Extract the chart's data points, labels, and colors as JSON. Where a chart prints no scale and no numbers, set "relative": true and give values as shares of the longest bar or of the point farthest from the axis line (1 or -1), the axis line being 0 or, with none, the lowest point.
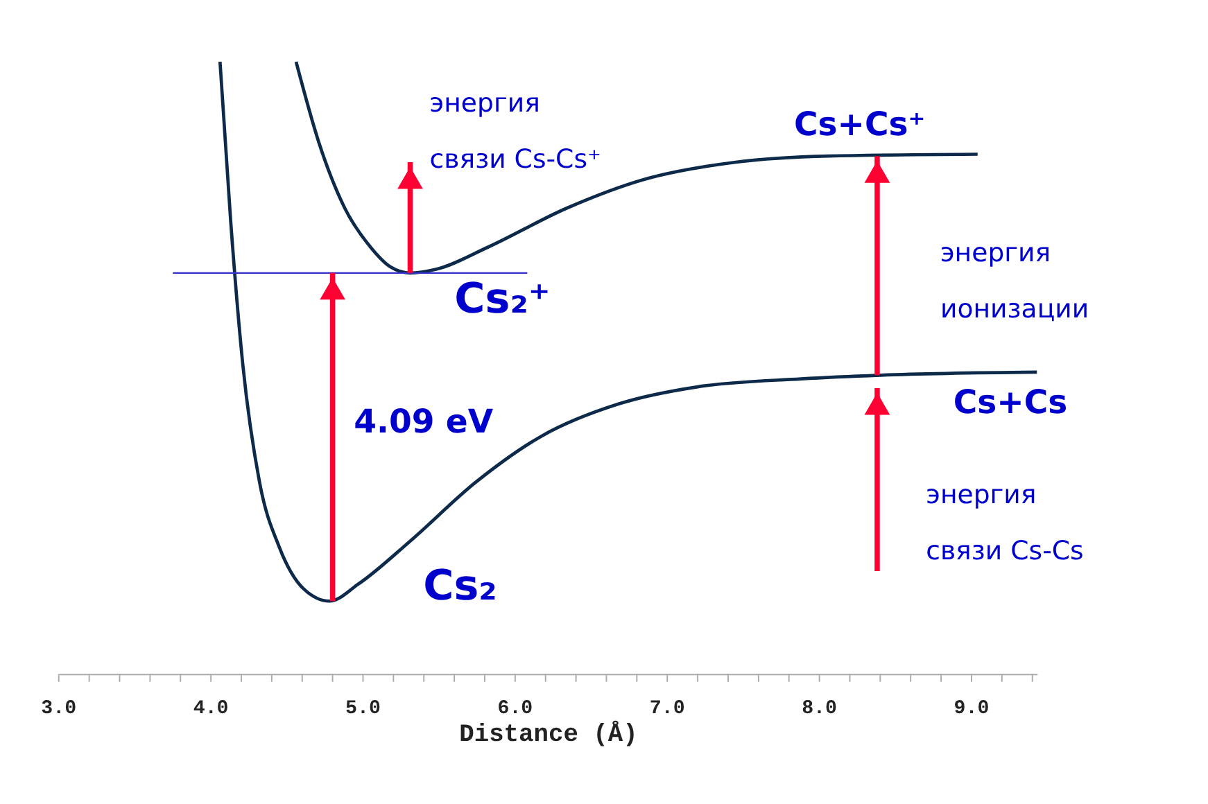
{
  "chart_data": {
    "type": "line",
    "relative": true,
    "xlabel": "Distance (Å)",
    "xlim": [
      3.0,
      9.43
    ],
    "xticks": [
      {
        "value": 3,
        "label": "3.0"
      },
      {
        "value": 3.2,
        "label": null
      },
      {
        "value": 3.4,
        "label": null
      },
      {
        "value": 3.6,
        "label": null
      },
      {
        "value": 3.8,
        "label": null
      },
      {
        "value": 4,
        "label": "4.0"
      },
      {
        "value": 4.2,
        "label": null
      },
      {
        "value": 4.4,
        "label": null
      },
      {
        "value": 4.6,
        "label": null
      },
      {
        "value": 4.8,
        "label": null
      },
      {
        "value": 5,
        "label": "5.0"
      },
      {
        "value": 5.2,
        "label": null
      },
      {
        "value": 5.4,
        "label": null
      },
      {
        "value": 5.6,
        "label": null
      },
      {
        "value": 5.8,
        "label": null
      },
      {
        "value": 6,
        "label": "6.0"
      },
      {
        "value": 6.2,
        "label": null
      },
      {
        "value": 6.4,
        "label": null
      },
      {
        "value": 6.6,
        "label": null
      },
      {
        "value": 6.8,
        "label": null
      },
      {
        "value": 7,
        "label": "7.0"
      },
      {
        "value": 7.2,
        "label": null
      },
      {
        "value": 7.4,
        "label": null
      },
      {
        "value": 7.6,
        "label": null
      },
      {
        "value": 7.8,
        "label": null
      },
      {
        "value": 8,
        "label": "8.0"
      },
      {
        "value": 8.2,
        "label": null
      },
      {
        "value": 8.4,
        "label": null
      },
      {
        "value": 8.6,
        "label": null
      },
      {
        "value": 8.8,
        "label": null
      },
      {
        "value": 9,
        "label": "9.0"
      },
      {
        "value": 9.2,
        "label": null
      },
      {
        "value": 9.4,
        "label": null
      }
    ],
    "grid": false,
    "tick_labels": "x",
    "line_style": "solid",
    "series": [
      {
        "name": "Cs₂",
        "color": "#0d2a4a",
        "x": [
          4.06,
          4.13,
          4.21,
          4.32,
          4.45,
          4.61,
          4.78,
          4.97,
          5.31,
          5.74,
          6.17,
          6.68,
          7.2,
          7.88,
          8.4,
          9.43
        ],
        "values": [
          1.0,
          0.74,
          0.505,
          0.313,
          0.207,
          0.139,
          0.119,
          0.147,
          0.217,
          0.313,
          0.388,
          0.441,
          0.469,
          0.482,
          0.488,
          0.493
        ]
      },
      {
        "name": "Cs₂⁺",
        "color": "#0d2a4a",
        "x": [
          4.56,
          4.71,
          4.88,
          5.05,
          5.18,
          5.31,
          5.48,
          5.82,
          6.34,
          6.85,
          7.45,
          8.06,
          9.04
        ],
        "values": [
          1.0,
          0.868,
          0.761,
          0.697,
          0.665,
          0.655,
          0.661,
          0.697,
          0.761,
          0.808,
          0.836,
          0.846,
          0.849
        ]
      },
      {
        "color": "#3333cc",
        "x": [
          3.75,
          6.08
        ],
        "values": [
          0.655,
          0.655
        ]
      },
      {
        "color": "#ff0033",
        "x": [
          4.8,
          4.8
        ],
        "values": [
          0.119,
          0.655
        ]
      },
      {
        "color": "#ff0033",
        "x": [
          5.31,
          5.31
        ],
        "values": [
          0.655,
          0.836
        ]
      },
      {
        "color": "#ff0033",
        "x": [
          8.38,
          8.38
        ],
        "values": [
          0.488,
          0.846
        ]
      },
      {
        "color": "#ff0033",
        "x": [
          8.38,
          8.38
        ],
        "values": [
          0.168,
          0.467
        ]
      }
    ],
    "annotations": [
      "энергия\nсвязи Cs-Cs⁺",
      "Cs+Cs⁺",
      "энергия\nионизации",
      "Cs+Cs",
      "энергия\nсвязи Cs-Cs",
      "4.09 eV"
    ]
  }
}
